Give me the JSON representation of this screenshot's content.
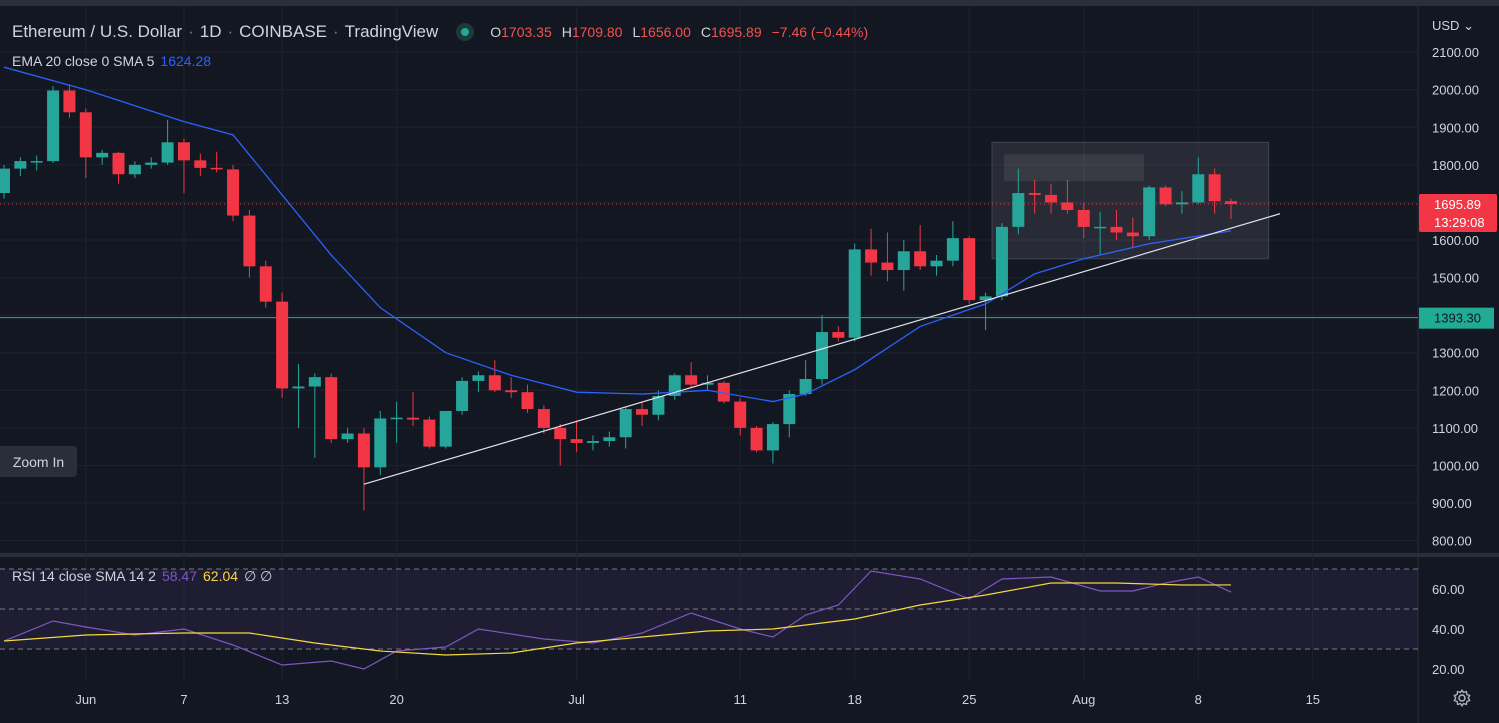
{
  "header": {
    "symbol": "Ethereum / U.S. Dollar",
    "interval": "1D",
    "exchange": "COINBASE",
    "source": "TradingView",
    "ohlc": [
      {
        "k": "O",
        "v": "1703.35"
      },
      {
        "k": "H",
        "v": "1709.80"
      },
      {
        "k": "L",
        "v": "1656.00"
      },
      {
        "k": "C",
        "v": "1695.89"
      }
    ],
    "change": "−7.46 (−0.44%)"
  },
  "indicator": {
    "label": "EMA 20 close 0 SMA 5",
    "value": "1624.28"
  },
  "rsi_header": {
    "label": "RSI 14 close SMA 14 2",
    "rsi": "58.47",
    "ma": "62.04",
    "extra": "∅ ∅"
  },
  "zoom_label": "Zoom In",
  "currency": "USD",
  "colors": {
    "up": "#26a69a",
    "down": "#f23645",
    "ema": "#2962ff",
    "rsi": "#7e57c2",
    "rsi_ma": "#f7d93e",
    "hline": "#22ab94"
  },
  "chart_data": {
    "type": "candlestick",
    "price_axis": {
      "ticks": [
        800,
        900,
        1000,
        1100,
        1200,
        1300,
        1400,
        1500,
        1600,
        1700,
        1800,
        1900,
        2000,
        2100
      ],
      "tick_labels": [
        "800.00",
        "900.00",
        "1000.00",
        "1100.00",
        "1200.00",
        "1300.00",
        "1400.00",
        "1500.00",
        "1600.00",
        "1700.00",
        "1800.00",
        "1900.00",
        "2000.00",
        "2100.00"
      ]
    },
    "x_axis": {
      "labels": [
        {
          "text": "Jun",
          "date": "2022-06-01"
        },
        {
          "text": "7",
          "date": "2022-06-07"
        },
        {
          "text": "13",
          "date": "2022-06-13"
        },
        {
          "text": "20",
          "date": "2022-06-20"
        },
        {
          "text": "Jul",
          "date": "2022-07-01"
        },
        {
          "text": "11",
          "date": "2022-07-11"
        },
        {
          "text": "18",
          "date": "2022-07-18"
        },
        {
          "text": "25",
          "date": "2022-07-25"
        },
        {
          "text": "Aug",
          "date": "2022-08-01"
        },
        {
          "text": "8",
          "date": "2022-08-08"
        },
        {
          "text": "15",
          "date": "2022-08-15"
        }
      ]
    },
    "candles": [
      {
        "date": "2022-05-27",
        "o": 1725,
        "h": 1800,
        "l": 1710,
        "c": 1790
      },
      {
        "date": "2022-05-28",
        "o": 1790,
        "h": 1820,
        "l": 1770,
        "c": 1810
      },
      {
        "date": "2022-05-29",
        "o": 1810,
        "h": 1825,
        "l": 1785,
        "c": 1810
      },
      {
        "date": "2022-05-30",
        "o": 1810,
        "h": 2010,
        "l": 1805,
        "c": 1998
      },
      {
        "date": "2022-05-31",
        "o": 1998,
        "h": 2015,
        "l": 1925,
        "c": 1940
      },
      {
        "date": "2022-06-01",
        "o": 1940,
        "h": 1950,
        "l": 1765,
        "c": 1820
      },
      {
        "date": "2022-06-02",
        "o": 1820,
        "h": 1840,
        "l": 1800,
        "c": 1832
      },
      {
        "date": "2022-06-03",
        "o": 1832,
        "h": 1835,
        "l": 1750,
        "c": 1775
      },
      {
        "date": "2022-06-04",
        "o": 1775,
        "h": 1810,
        "l": 1765,
        "c": 1800
      },
      {
        "date": "2022-06-05",
        "o": 1800,
        "h": 1820,
        "l": 1790,
        "c": 1806
      },
      {
        "date": "2022-06-06",
        "o": 1806,
        "h": 1920,
        "l": 1800,
        "c": 1860
      },
      {
        "date": "2022-06-07",
        "o": 1860,
        "h": 1870,
        "l": 1725,
        "c": 1812
      },
      {
        "date": "2022-06-08",
        "o": 1812,
        "h": 1830,
        "l": 1770,
        "c": 1792
      },
      {
        "date": "2022-06-09",
        "o": 1792,
        "h": 1835,
        "l": 1780,
        "c": 1788
      },
      {
        "date": "2022-06-10",
        "o": 1788,
        "h": 1800,
        "l": 1650,
        "c": 1665
      },
      {
        "date": "2022-06-11",
        "o": 1665,
        "h": 1680,
        "l": 1500,
        "c": 1530
      },
      {
        "date": "2022-06-12",
        "o": 1530,
        "h": 1545,
        "l": 1420,
        "c": 1436
      },
      {
        "date": "2022-06-13",
        "o": 1436,
        "h": 1460,
        "l": 1180,
        "c": 1205
      },
      {
        "date": "2022-06-14",
        "o": 1205,
        "h": 1270,
        "l": 1100,
        "c": 1210
      },
      {
        "date": "2022-06-15",
        "o": 1210,
        "h": 1245,
        "l": 1020,
        "c": 1235
      },
      {
        "date": "2022-06-16",
        "o": 1235,
        "h": 1245,
        "l": 1060,
        "c": 1070
      },
      {
        "date": "2022-06-17",
        "o": 1070,
        "h": 1100,
        "l": 1060,
        "c": 1085
      },
      {
        "date": "2022-06-18",
        "o": 1085,
        "h": 1100,
        "l": 880,
        "c": 995
      },
      {
        "date": "2022-06-19",
        "o": 995,
        "h": 1145,
        "l": 975,
        "c": 1125
      },
      {
        "date": "2022-06-20",
        "o": 1125,
        "h": 1170,
        "l": 1060,
        "c": 1127
      },
      {
        "date": "2022-06-21",
        "o": 1127,
        "h": 1195,
        "l": 1105,
        "c": 1122
      },
      {
        "date": "2022-06-22",
        "o": 1122,
        "h": 1130,
        "l": 1045,
        "c": 1050
      },
      {
        "date": "2022-06-23",
        "o": 1050,
        "h": 1145,
        "l": 1045,
        "c": 1145
      },
      {
        "date": "2022-06-24",
        "o": 1145,
        "h": 1235,
        "l": 1135,
        "c": 1225
      },
      {
        "date": "2022-06-25",
        "o": 1225,
        "h": 1250,
        "l": 1195,
        "c": 1240
      },
      {
        "date": "2022-06-26",
        "o": 1240,
        "h": 1280,
        "l": 1195,
        "c": 1200
      },
      {
        "date": "2022-06-27",
        "o": 1200,
        "h": 1235,
        "l": 1180,
        "c": 1195
      },
      {
        "date": "2022-06-28",
        "o": 1195,
        "h": 1215,
        "l": 1140,
        "c": 1150
      },
      {
        "date": "2022-06-29",
        "o": 1150,
        "h": 1160,
        "l": 1085,
        "c": 1100
      },
      {
        "date": "2022-06-30",
        "o": 1100,
        "h": 1110,
        "l": 1000,
        "c": 1070
      },
      {
        "date": "2022-07-01",
        "o": 1070,
        "h": 1120,
        "l": 1035,
        "c": 1060
      },
      {
        "date": "2022-07-02",
        "o": 1060,
        "h": 1080,
        "l": 1040,
        "c": 1065
      },
      {
        "date": "2022-07-03",
        "o": 1065,
        "h": 1090,
        "l": 1050,
        "c": 1075
      },
      {
        "date": "2022-07-04",
        "o": 1075,
        "h": 1155,
        "l": 1045,
        "c": 1150
      },
      {
        "date": "2022-07-05",
        "o": 1150,
        "h": 1170,
        "l": 1105,
        "c": 1135
      },
      {
        "date": "2022-07-06",
        "o": 1135,
        "h": 1200,
        "l": 1120,
        "c": 1185
      },
      {
        "date": "2022-07-07",
        "o": 1185,
        "h": 1245,
        "l": 1175,
        "c": 1240
      },
      {
        "date": "2022-07-08",
        "o": 1240,
        "h": 1275,
        "l": 1205,
        "c": 1215
      },
      {
        "date": "2022-07-09",
        "o": 1215,
        "h": 1240,
        "l": 1200,
        "c": 1220
      },
      {
        "date": "2022-07-10",
        "o": 1220,
        "h": 1225,
        "l": 1165,
        "c": 1170
      },
      {
        "date": "2022-07-11",
        "o": 1170,
        "h": 1180,
        "l": 1080,
        "c": 1100
      },
      {
        "date": "2022-07-12",
        "o": 1100,
        "h": 1105,
        "l": 1035,
        "c": 1040
      },
      {
        "date": "2022-07-13",
        "o": 1040,
        "h": 1115,
        "l": 1005,
        "c": 1110
      },
      {
        "date": "2022-07-14",
        "o": 1110,
        "h": 1200,
        "l": 1075,
        "c": 1190
      },
      {
        "date": "2022-07-15",
        "o": 1190,
        "h": 1280,
        "l": 1185,
        "c": 1230
      },
      {
        "date": "2022-07-16",
        "o": 1230,
        "h": 1400,
        "l": 1215,
        "c": 1355
      },
      {
        "date": "2022-07-17",
        "o": 1355,
        "h": 1370,
        "l": 1330,
        "c": 1340
      },
      {
        "date": "2022-07-18",
        "o": 1340,
        "h": 1590,
        "l": 1330,
        "c": 1575
      },
      {
        "date": "2022-07-19",
        "o": 1575,
        "h": 1630,
        "l": 1505,
        "c": 1540
      },
      {
        "date": "2022-07-20",
        "o": 1540,
        "h": 1620,
        "l": 1490,
        "c": 1520
      },
      {
        "date": "2022-07-21",
        "o": 1520,
        "h": 1600,
        "l": 1465,
        "c": 1570
      },
      {
        "date": "2022-07-22",
        "o": 1570,
        "h": 1640,
        "l": 1520,
        "c": 1530
      },
      {
        "date": "2022-07-23",
        "o": 1530,
        "h": 1560,
        "l": 1505,
        "c": 1545
      },
      {
        "date": "2022-07-24",
        "o": 1545,
        "h": 1650,
        "l": 1530,
        "c": 1605
      },
      {
        "date": "2022-07-25",
        "o": 1605,
        "h": 1610,
        "l": 1430,
        "c": 1440
      },
      {
        "date": "2022-07-26",
        "o": 1440,
        "h": 1460,
        "l": 1360,
        "c": 1450
      },
      {
        "date": "2022-07-27",
        "o": 1450,
        "h": 1645,
        "l": 1440,
        "c": 1635
      },
      {
        "date": "2022-07-28",
        "o": 1635,
        "h": 1790,
        "l": 1615,
        "c": 1725
      },
      {
        "date": "2022-07-29",
        "o": 1725,
        "h": 1760,
        "l": 1670,
        "c": 1720
      },
      {
        "date": "2022-07-30",
        "o": 1720,
        "h": 1750,
        "l": 1670,
        "c": 1700
      },
      {
        "date": "2022-07-31",
        "o": 1700,
        "h": 1760,
        "l": 1670,
        "c": 1680
      },
      {
        "date": "2022-08-01",
        "o": 1680,
        "h": 1700,
        "l": 1605,
        "c": 1635
      },
      {
        "date": "2022-08-02",
        "o": 1635,
        "h": 1675,
        "l": 1560,
        "c": 1635
      },
      {
        "date": "2022-08-03",
        "o": 1635,
        "h": 1680,
        "l": 1600,
        "c": 1620
      },
      {
        "date": "2022-08-04",
        "o": 1620,
        "h": 1660,
        "l": 1580,
        "c": 1610
      },
      {
        "date": "2022-08-05",
        "o": 1610,
        "h": 1745,
        "l": 1600,
        "c": 1740
      },
      {
        "date": "2022-08-06",
        "o": 1740,
        "h": 1745,
        "l": 1690,
        "c": 1695
      },
      {
        "date": "2022-08-07",
        "o": 1695,
        "h": 1730,
        "l": 1670,
        "c": 1700
      },
      {
        "date": "2022-08-08",
        "o": 1700,
        "h": 1820,
        "l": 1695,
        "c": 1775
      },
      {
        "date": "2022-08-09",
        "o": 1775,
        "h": 1790,
        "l": 1670,
        "c": 1703.35
      },
      {
        "date": "2022-08-10",
        "o": 1703.35,
        "h": 1709.8,
        "l": 1656.0,
        "c": 1695.89
      }
    ],
    "ema20": [
      {
        "date": "2022-05-27",
        "v": 2060
      },
      {
        "date": "2022-06-01",
        "v": 2000
      },
      {
        "date": "2022-06-07",
        "v": 1915
      },
      {
        "date": "2022-06-10",
        "v": 1880
      },
      {
        "date": "2022-06-13",
        "v": 1720
      },
      {
        "date": "2022-06-16",
        "v": 1560
      },
      {
        "date": "2022-06-19",
        "v": 1420
      },
      {
        "date": "2022-06-23",
        "v": 1300
      },
      {
        "date": "2022-06-27",
        "v": 1240
      },
      {
        "date": "2022-07-01",
        "v": 1195
      },
      {
        "date": "2022-07-05",
        "v": 1190
      },
      {
        "date": "2022-07-09",
        "v": 1200
      },
      {
        "date": "2022-07-13",
        "v": 1170
      },
      {
        "date": "2022-07-15",
        "v": 1190
      },
      {
        "date": "2022-07-18",
        "v": 1255
      },
      {
        "date": "2022-07-22",
        "v": 1370
      },
      {
        "date": "2022-07-26",
        "v": 1430
      },
      {
        "date": "2022-07-29",
        "v": 1510
      },
      {
        "date": "2022-08-01",
        "v": 1550
      },
      {
        "date": "2022-08-05",
        "v": 1590
      },
      {
        "date": "2022-08-10",
        "v": 1624.28
      }
    ],
    "trendline": {
      "from": {
        "date": "2022-06-18",
        "v": 950
      },
      "to": {
        "date": "2022-08-13",
        "v": 1670
      }
    },
    "support_level": {
      "v": 1393.3,
      "label": "1393.30"
    },
    "last_price": {
      "v": 1695.89,
      "label": "1695.89",
      "countdown": "13:29:08"
    },
    "range_box": {
      "from_date": "2022-07-27",
      "to_date": "2022-08-12",
      "top": 1860,
      "bottom": 1550
    },
    "rsi": {
      "ticks": [
        20,
        40,
        60
      ],
      "tick_labels": [
        "20.00",
        "40.00",
        "60.00"
      ],
      "bands": [
        30,
        50,
        70
      ],
      "rsi_series": [
        {
          "date": "2022-05-27",
          "v": 34
        },
        {
          "date": "2022-05-30",
          "v": 44
        },
        {
          "date": "2022-06-01",
          "v": 41
        },
        {
          "date": "2022-06-04",
          "v": 37
        },
        {
          "date": "2022-06-07",
          "v": 40
        },
        {
          "date": "2022-06-10",
          "v": 32
        },
        {
          "date": "2022-06-13",
          "v": 22
        },
        {
          "date": "2022-06-16",
          "v": 24
        },
        {
          "date": "2022-06-18",
          "v": 20
        },
        {
          "date": "2022-06-20",
          "v": 29
        },
        {
          "date": "2022-06-23",
          "v": 31
        },
        {
          "date": "2022-06-25",
          "v": 40
        },
        {
          "date": "2022-06-29",
          "v": 35
        },
        {
          "date": "2022-07-02",
          "v": 33
        },
        {
          "date": "2022-07-05",
          "v": 38
        },
        {
          "date": "2022-07-08",
          "v": 48
        },
        {
          "date": "2022-07-11",
          "v": 40
        },
        {
          "date": "2022-07-13",
          "v": 36
        },
        {
          "date": "2022-07-15",
          "v": 47
        },
        {
          "date": "2022-07-17",
          "v": 52
        },
        {
          "date": "2022-07-19",
          "v": 69
        },
        {
          "date": "2022-07-22",
          "v": 65
        },
        {
          "date": "2022-07-25",
          "v": 55
        },
        {
          "date": "2022-07-27",
          "v": 65
        },
        {
          "date": "2022-07-30",
          "v": 66
        },
        {
          "date": "2022-08-02",
          "v": 59
        },
        {
          "date": "2022-08-04",
          "v": 59
        },
        {
          "date": "2022-08-06",
          "v": 63
        },
        {
          "date": "2022-08-08",
          "v": 66
        },
        {
          "date": "2022-08-10",
          "v": 58.47
        }
      ],
      "ma_series": [
        {
          "date": "2022-05-27",
          "v": 34
        },
        {
          "date": "2022-06-01",
          "v": 37
        },
        {
          "date": "2022-06-07",
          "v": 38
        },
        {
          "date": "2022-06-11",
          "v": 38
        },
        {
          "date": "2022-06-15",
          "v": 33
        },
        {
          "date": "2022-06-19",
          "v": 29
        },
        {
          "date": "2022-06-23",
          "v": 27
        },
        {
          "date": "2022-06-27",
          "v": 28
        },
        {
          "date": "2022-07-01",
          "v": 33
        },
        {
          "date": "2022-07-05",
          "v": 36
        },
        {
          "date": "2022-07-09",
          "v": 39
        },
        {
          "date": "2022-07-13",
          "v": 40
        },
        {
          "date": "2022-07-18",
          "v": 45
        },
        {
          "date": "2022-07-22",
          "v": 52
        },
        {
          "date": "2022-07-26",
          "v": 57
        },
        {
          "date": "2022-07-30",
          "v": 63
        },
        {
          "date": "2022-08-03",
          "v": 63
        },
        {
          "date": "2022-08-07",
          "v": 62
        },
        {
          "date": "2022-08-10",
          "v": 62.04
        }
      ]
    }
  }
}
